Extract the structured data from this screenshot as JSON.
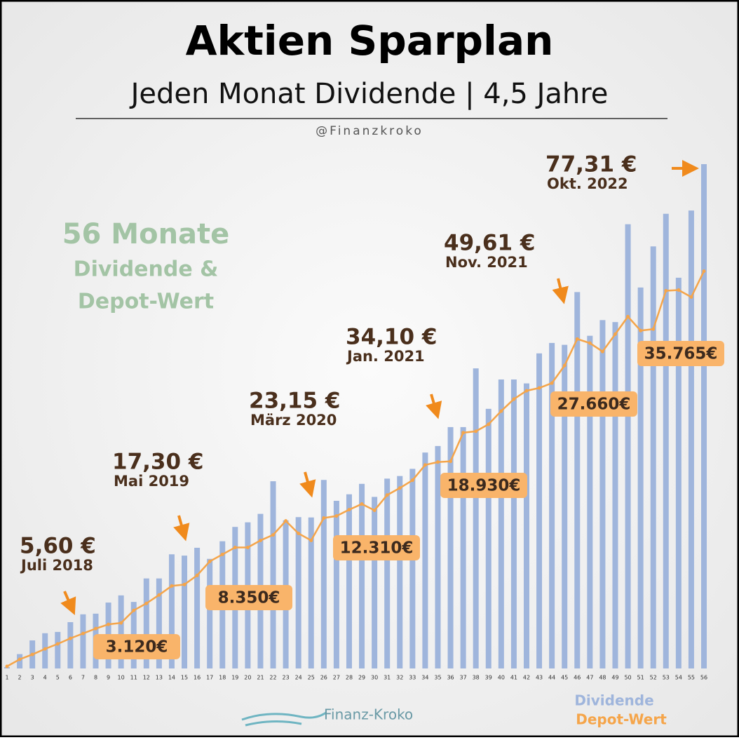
{
  "chart_data": {
    "type": "bar-line",
    "title": "Aktien Sparplan",
    "subtitle": "Jeden Monat Dividende | 4,5 Jahre",
    "handle": "@Finanzkroko",
    "side_text": [
      "56 Monate",
      "Dividende &",
      "Depot-Wert"
    ],
    "logo": "Finanz-Kroko",
    "categories": [
      1,
      2,
      3,
      4,
      5,
      6,
      7,
      8,
      9,
      10,
      11,
      12,
      13,
      14,
      15,
      16,
      17,
      18,
      19,
      20,
      21,
      22,
      23,
      24,
      25,
      26,
      27,
      28,
      29,
      30,
      31,
      32,
      33,
      34,
      35,
      36,
      37,
      38,
      39,
      40,
      41,
      42,
      43,
      44,
      45,
      46,
      47,
      48,
      49,
      50,
      51,
      52,
      53,
      54,
      55,
      56
    ],
    "ylim": [
      0,
      80
    ],
    "y2lim": [
      0,
      47000
    ],
    "series": [
      {
        "name": "Dividende",
        "color": "#9fb5dc",
        "values": [
          0.2,
          2.2,
          4.3,
          5.4,
          5.6,
          7.1,
          8.3,
          8.4,
          10.1,
          11.2,
          10.2,
          13.8,
          13.8,
          17.5,
          17.3,
          18.5,
          16.8,
          19.5,
          21.7,
          22.4,
          23.7,
          28.7,
          22.7,
          23.2,
          23.15,
          28.9,
          25.7,
          26.7,
          28.3,
          26.3,
          29.1,
          29.5,
          30.6,
          33.1,
          34.1,
          37.0,
          37.0,
          46.0,
          39.8,
          44.3,
          44.3,
          43.7,
          48.3,
          49.9,
          49.61,
          57.7,
          51.0,
          53.4,
          53.1,
          68.1,
          58.4,
          64.7,
          69.7,
          59.9,
          70.2,
          77.31
        ]
      },
      {
        "name": "Depot-Wert",
        "color": "#f5a54a",
        "axis": "y2",
        "values": [
          190,
          820,
          1260,
          1760,
          2210,
          2710,
          3150,
          3590,
          3970,
          4100,
          5230,
          5860,
          6620,
          7430,
          7560,
          8380,
          9640,
          10270,
          10900,
          10900,
          11530,
          12030,
          13290,
          12160,
          11530,
          13550,
          13730,
          14300,
          14810,
          14240,
          15620,
          16250,
          16950,
          18330,
          18590,
          18650,
          21230,
          21360,
          21990,
          23180,
          24260,
          25010,
          25260,
          25700,
          27280,
          29670,
          29300,
          28540,
          30110,
          31690,
          30430,
          30560,
          34020,
          34080,
          33450,
          35780
        ]
      }
    ],
    "dividend_annotations": [
      {
        "value": "5,60 €",
        "date": "Juli 2018"
      },
      {
        "value": "17,30 €",
        "date": "Mai 2019"
      },
      {
        "value": "23,15 €",
        "date": "März 2020"
      },
      {
        "value": "34,10 €",
        "date": "Jan. 2021"
      },
      {
        "value": "49,61 €",
        "date": "Nov. 2021"
      },
      {
        "value": "77,31 €",
        "date": "Okt. 2022"
      }
    ],
    "depot_annotations": [
      "3.120€",
      "8.350€",
      "12.310€",
      "18.930€",
      "27.660€",
      "35.765€"
    ]
  }
}
